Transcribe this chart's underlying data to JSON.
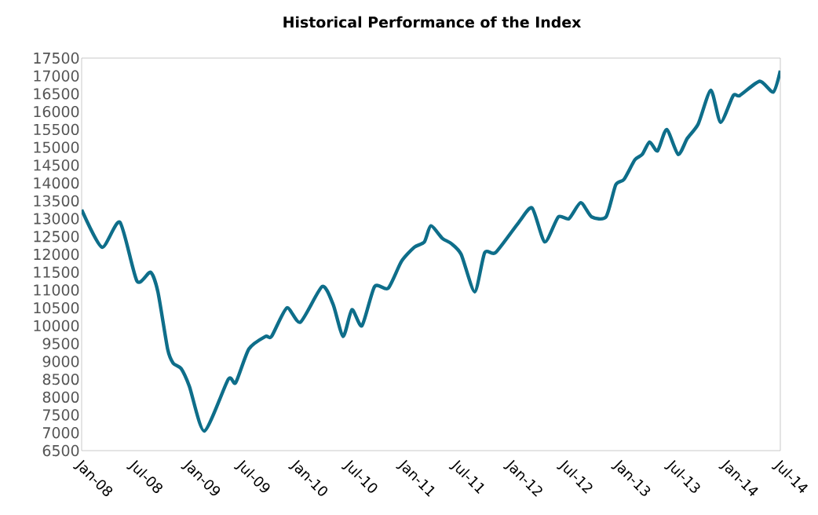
{
  "chart_data": {
    "type": "line",
    "title": "Historical Performance of the Index",
    "x": [
      "2008-01-01",
      "2008-03-10",
      "2008-05-10",
      "2008-07-07",
      "2008-08-22",
      "2008-09-16",
      "2008-10-19",
      "2008-11-07",
      "2008-12-04",
      "2009-01-01",
      "2009-02-21",
      "2009-05-13",
      "2009-06-07",
      "2009-07-22",
      "2009-09-16",
      "2009-10-07",
      "2009-11-28",
      "2010-01-13",
      "2010-03-28",
      "2010-05-04",
      "2010-06-07",
      "2010-07-07",
      "2010-08-10",
      "2010-09-22",
      "2010-11-07",
      "2010-12-22",
      "2011-02-04",
      "2011-03-10",
      "2011-04-01",
      "2011-05-10",
      "2011-06-10",
      "2011-07-13",
      "2011-08-28",
      "2011-10-01",
      "2011-11-07",
      "2012-01-25",
      "2012-03-10",
      "2012-04-22",
      "2012-06-07",
      "2012-07-13",
      "2012-08-22",
      "2012-09-28",
      "2012-11-16",
      "2012-12-19",
      "2013-01-16",
      "2013-02-22",
      "2013-03-19",
      "2013-04-13",
      "2013-05-10",
      "2013-06-10",
      "2013-07-19",
      "2013-08-19",
      "2013-09-25",
      "2013-11-07",
      "2013-12-10",
      "2014-01-22",
      "2014-02-13",
      "2014-04-22",
      "2014-06-07",
      "2014-07-01"
    ],
    "series": [
      {
        "color": "#0e6e8a",
        "values": [
          13250,
          12200,
          12900,
          11250,
          11500,
          10950,
          9350,
          8950,
          8800,
          8300,
          7050,
          8500,
          8400,
          9350,
          9700,
          9700,
          10500,
          10100,
          11100,
          10600,
          9700,
          10450,
          10000,
          11100,
          11050,
          11800,
          12200,
          12350,
          12800,
          12450,
          12300,
          12000,
          10950,
          12050,
          12050,
          12900,
          13300,
          12350,
          13050,
          13000,
          13450,
          13050,
          13050,
          13950,
          14100,
          14650,
          14800,
          15150,
          14900,
          15500,
          14800,
          15250,
          15650,
          16600,
          15700,
          16450,
          16450,
          16850,
          16550,
          17150
        ]
      }
    ],
    "xlim": [
      "2008-01-01",
      "2014-07-01"
    ],
    "xticks": [
      {
        "value": "2008-01-01",
        "label": "Jan-08"
      },
      {
        "value": "2008-07-01",
        "label": "Jul-08"
      },
      {
        "value": "2009-01-01",
        "label": "Jan-09"
      },
      {
        "value": "2009-07-01",
        "label": "Jul-09"
      },
      {
        "value": "2010-01-01",
        "label": "Jan-10"
      },
      {
        "value": "2010-07-01",
        "label": "Jul-10"
      },
      {
        "value": "2011-01-01",
        "label": "Jan-11"
      },
      {
        "value": "2011-07-01",
        "label": "Jul-11"
      },
      {
        "value": "2012-01-01",
        "label": "Jan-12"
      },
      {
        "value": "2012-07-01",
        "label": "Jul-12"
      },
      {
        "value": "2013-01-01",
        "label": "Jan-13"
      },
      {
        "value": "2013-07-01",
        "label": "Jul-13"
      },
      {
        "value": "2014-01-01",
        "label": "Jan-14"
      },
      {
        "value": "2014-07-01",
        "label": "Jul-14"
      }
    ],
    "ylim": [
      6500,
      17500
    ],
    "yticks": [
      6500,
      7000,
      7500,
      8000,
      8500,
      9000,
      9500,
      10000,
      10500,
      11000,
      11500,
      12000,
      12500,
      13000,
      13500,
      14000,
      14500,
      15000,
      15500,
      16000,
      16500,
      17000,
      17500
    ]
  }
}
